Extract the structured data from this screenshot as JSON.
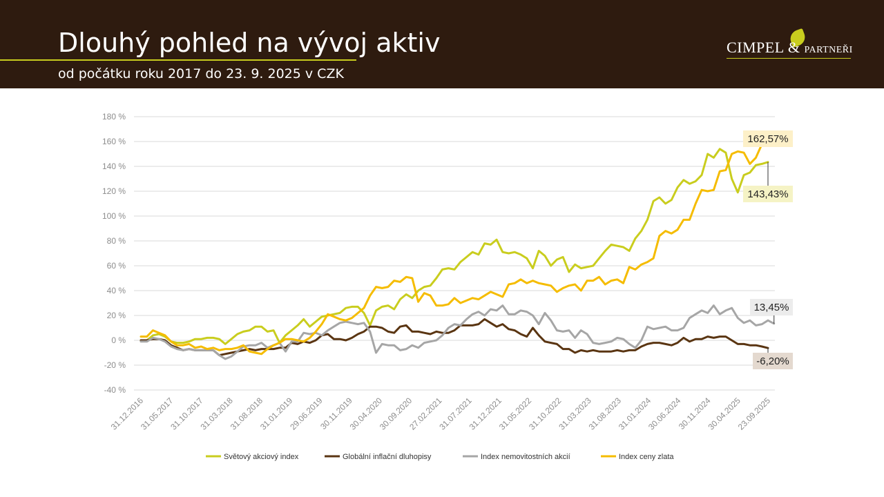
{
  "header": {
    "title": "Dlouhý pohled na vývoj aktiv",
    "subtitle": "od počátku roku 2017 do 23. 9. 2025 v CZK",
    "logo_main": "CIMPEL",
    "logo_amp": "&",
    "logo_suffix": "PARTNEŘI"
  },
  "chart_data": {
    "type": "line",
    "title": "",
    "xlabel": "",
    "ylabel": "",
    "ylim": [
      -40,
      180
    ],
    "ytick_step": 20,
    "ytick_suffix": " %",
    "grid": true,
    "legend_position": "bottom",
    "x_tick_labels": [
      "31.12.2016",
      "31.05.2017",
      "31.10.2017",
      "31.03.2018",
      "31.08.2018",
      "31.01.2019",
      "29.06.2019",
      "30.11.2019",
      "30.04.2020",
      "30.09.2020",
      "27.02.2021",
      "31.07.2021",
      "31.12.2021",
      "31.05.2022",
      "31.10.2022",
      "31.03.2023",
      "31.08.2023",
      "31.01.2024",
      "30.06.2024",
      "30.11.2024",
      "30.04.2025",
      "23.09.2025"
    ],
    "series": [
      {
        "name": "Světový akciový index",
        "color": "#c9cd1e",
        "values": [
          0,
          0,
          4,
          5,
          3,
          -1,
          -2,
          -2,
          -1,
          1,
          1,
          2,
          2,
          1,
          -3,
          1,
          5,
          7,
          8,
          11,
          11,
          7,
          8,
          -2,
          4,
          8,
          12,
          17,
          11,
          15,
          19,
          20,
          21,
          22,
          26,
          27,
          27,
          22,
          12,
          24,
          27,
          28,
          25,
          33,
          37,
          34,
          40,
          43,
          44,
          50,
          57,
          58,
          57,
          63,
          67,
          71,
          69,
          78,
          77,
          81,
          71,
          70,
          71,
          69,
          66,
          58,
          72,
          68,
          60,
          65,
          67,
          55,
          61,
          58,
          59,
          60,
          66,
          72,
          77,
          76,
          75,
          72,
          82,
          88,
          97,
          112,
          115,
          110,
          113,
          123,
          129,
          126,
          128,
          133,
          150,
          147,
          154,
          151,
          130,
          119,
          133,
          135,
          141,
          142,
          143.43
        ]
      },
      {
        "name": "Globální inflační dluhopisy",
        "color": "#5a3512",
        "values": [
          0,
          0,
          1,
          1,
          0,
          -4,
          -6,
          -8,
          -7,
          -8,
          -8,
          -8,
          -8,
          -12,
          -11,
          -10,
          -9,
          -8,
          -7,
          -8,
          -7,
          -7,
          -7,
          -6,
          -6,
          -2,
          -3,
          -1,
          -2,
          0,
          4,
          5,
          1,
          1,
          0,
          2,
          5,
          7,
          11,
          11,
          10,
          7,
          6,
          11,
          12,
          7,
          7,
          6,
          5,
          7,
          6,
          6,
          8,
          12,
          12,
          12,
          13,
          17,
          14,
          11,
          13,
          9,
          8,
          5,
          3,
          10,
          4,
          -1,
          -2,
          -3,
          -7,
          -7,
          -10,
          -8,
          -9,
          -8,
          -9,
          -9,
          -9,
          -8,
          -9,
          -8,
          -8,
          -5,
          -3,
          -2,
          -2,
          -3,
          -4,
          -2,
          2,
          -1,
          1,
          1,
          3,
          2,
          3,
          3,
          0,
          -3,
          -3,
          -4,
          -4,
          -5,
          -6.2
        ]
      },
      {
        "name": "Index nemovitostních akcií",
        "color": "#a6a6a6",
        "values": [
          -1,
          -1,
          2,
          1,
          -1,
          -5,
          -7,
          -8,
          -7,
          -8,
          -8,
          -8,
          -8,
          -12,
          -15,
          -13,
          -9,
          -5,
          -4,
          -4,
          -2,
          -6,
          -4,
          -2,
          -9,
          -1,
          -1,
          6,
          5,
          6,
          4,
          8,
          11,
          14,
          15,
          14,
          13,
          14,
          7,
          -10,
          -3,
          -4,
          -4,
          -8,
          -7,
          -4,
          -6,
          -2,
          -1,
          0,
          4,
          10,
          13,
          12,
          17,
          21,
          23,
          20,
          25,
          24,
          28,
          21,
          21,
          24,
          23,
          20,
          13,
          22,
          16,
          8,
          7,
          8,
          2,
          8,
          5,
          -2,
          -3,
          -2,
          -1,
          2,
          1,
          -3,
          -6,
          0,
          11,
          9,
          10,
          11,
          8,
          8,
          10,
          18,
          21,
          24,
          22,
          28,
          21,
          24,
          26,
          18,
          14,
          16,
          12,
          13,
          16,
          13.45
        ]
      },
      {
        "name": "Index ceny zlata",
        "color": "#f5bc00",
        "values": [
          3,
          3,
          8,
          6,
          4,
          -1,
          -4,
          -4,
          -3,
          -6,
          -5,
          -7,
          -6,
          -8,
          -7,
          -7,
          -6,
          -4,
          -9,
          -10,
          -11,
          -7,
          -4,
          -2,
          1,
          1,
          0,
          -1,
          2,
          7,
          13,
          21,
          19,
          17,
          16,
          18,
          22,
          26,
          36,
          43,
          42,
          43,
          48,
          47,
          51,
          50,
          31,
          38,
          36,
          28,
          28,
          29,
          34,
          30,
          32,
          34,
          33,
          36,
          39,
          37,
          35,
          45,
          46,
          49,
          46,
          48,
          46,
          45,
          44,
          39,
          42,
          44,
          45,
          40,
          48,
          48,
          51,
          45,
          48,
          49,
          46,
          59,
          57,
          61,
          63,
          66,
          84,
          88,
          86,
          89,
          97,
          97,
          110,
          121,
          120,
          121,
          136,
          137,
          150,
          152,
          151,
          142,
          147,
          158,
          162.57
        ]
      }
    ],
    "end_labels": [
      {
        "series": "Index ceny zlata",
        "text": "162,57%"
      },
      {
        "series": "Světový akciový index",
        "text": "143,43%"
      },
      {
        "series": "Index nemovitostních akcií",
        "text": "13,45%"
      },
      {
        "series": "Globální inflační dluhopisy",
        "text": "-6,20%"
      }
    ]
  }
}
